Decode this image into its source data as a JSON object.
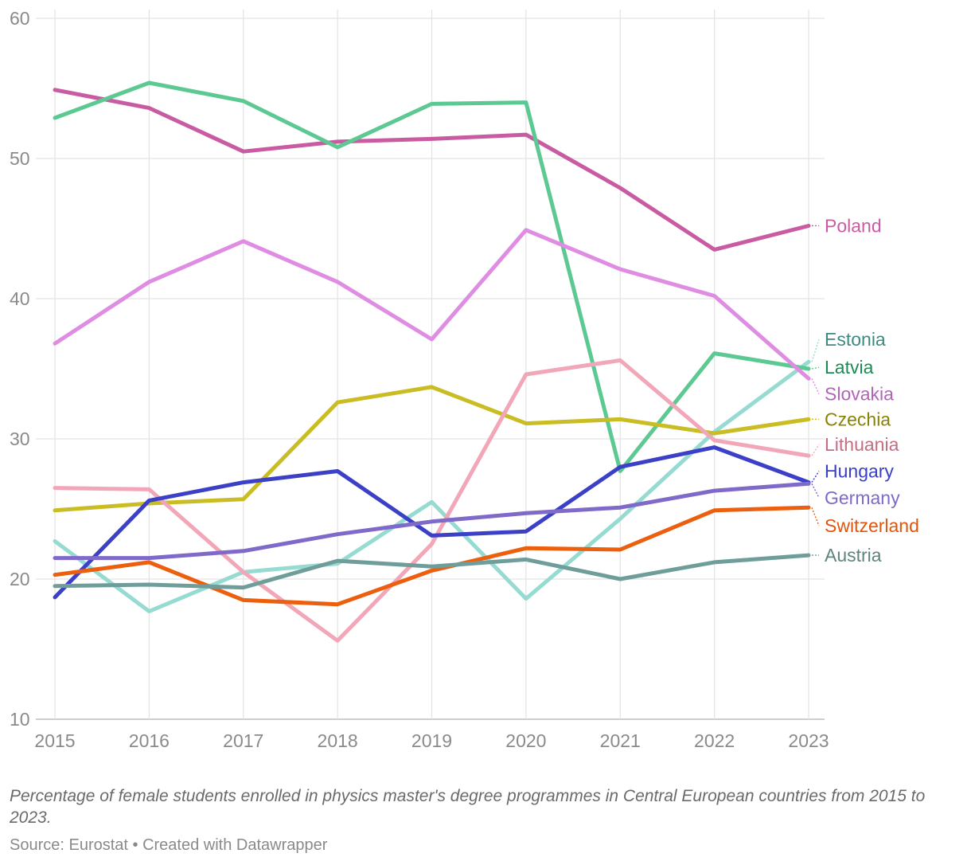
{
  "chart_data": {
    "type": "line",
    "x": [
      2015,
      2016,
      2017,
      2018,
      2019,
      2020,
      2021,
      2022,
      2023
    ],
    "ylim": [
      10,
      60
    ],
    "yticks": [
      10,
      20,
      30,
      40,
      50,
      60
    ],
    "ytick_labels": [
      "10",
      "20",
      "30",
      "40",
      "50",
      "60"
    ],
    "xtick_labels": [
      "2015",
      "2016",
      "2017",
      "2018",
      "2019",
      "2020",
      "2021",
      "2022",
      "2023"
    ],
    "grid": true,
    "legend": "direct labels at right end of lines",
    "series": [
      {
        "name": "Poland",
        "color": "#c95ba3",
        "values": [
          54.9,
          53.6,
          50.5,
          51.2,
          51.4,
          51.7,
          47.9,
          43.5,
          45.2
        ]
      },
      {
        "name": "Estonia",
        "color": "#96dbd2",
        "values": [
          22.7,
          17.7,
          20.5,
          21.1,
          25.5,
          18.6,
          24.3,
          30.5,
          35.5
        ]
      },
      {
        "name": "Latvia",
        "color": "#5dc992",
        "values": [
          52.9,
          55.4,
          54.1,
          50.8,
          53.9,
          54.0,
          27.7,
          36.1,
          35.0
        ]
      },
      {
        "name": "Slovakia",
        "color": "#de8de3",
        "values": [
          36.8,
          41.2,
          44.1,
          41.2,
          37.1,
          44.9,
          42.1,
          40.2,
          34.3
        ]
      },
      {
        "name": "Czechia",
        "color": "#c9bd23",
        "values": [
          24.9,
          25.4,
          25.7,
          32.6,
          33.7,
          31.1,
          31.4,
          30.4,
          31.4
        ]
      },
      {
        "name": "Lithuania",
        "color": "#f1a7b8",
        "values": [
          26.5,
          26.4,
          20.5,
          15.6,
          22.5,
          34.6,
          35.6,
          29.9,
          28.8
        ]
      },
      {
        "name": "Hungary",
        "color": "#3b40c7",
        "values": [
          18.7,
          25.6,
          26.9,
          27.7,
          23.1,
          23.4,
          28.0,
          29.4,
          26.9
        ]
      },
      {
        "name": "Germany",
        "color": "#7f69c9",
        "values": [
          21.5,
          21.5,
          22.0,
          23.2,
          24.1,
          24.7,
          25.1,
          26.3,
          26.8
        ]
      },
      {
        "name": "Switzerland",
        "color": "#ec5f0e",
        "values": [
          20.3,
          21.2,
          18.5,
          18.2,
          20.6,
          22.2,
          22.1,
          24.9,
          25.1
        ]
      },
      {
        "name": "Austria",
        "color": "#6f9e9a",
        "values": [
          19.5,
          19.6,
          19.4,
          21.3,
          20.9,
          21.4,
          20.0,
          21.2,
          21.7
        ]
      }
    ],
    "labels": [
      {
        "name": "Poland",
        "text": "Poland",
        "color": "#c95ba3",
        "label_value": 45.2
      },
      {
        "name": "Estonia",
        "text": "Estonia",
        "color": "#3d8a80",
        "label_value": 37.1
      },
      {
        "name": "Latvia",
        "text": "Latvia",
        "color": "#1c8a55",
        "label_value": 35.1
      },
      {
        "name": "Slovakia",
        "text": "Slovakia",
        "color": "#b164b8",
        "label_value": 33.2
      },
      {
        "name": "Czechia",
        "text": "Czechia",
        "color": "#8a8200",
        "label_value": 31.4
      },
      {
        "name": "Lithuania",
        "text": "Lithuania",
        "color": "#c46e82",
        "label_value": 29.6
      },
      {
        "name": "Hungary",
        "text": "Hungary",
        "color": "#3b40c7",
        "label_value": 27.7
      },
      {
        "name": "Germany",
        "text": "Germany",
        "color": "#7f69c9",
        "label_value": 25.8
      },
      {
        "name": "Switzerland",
        "text": "Switzerland",
        "color": "#e0560c",
        "label_value": 23.8
      },
      {
        "name": "Austria",
        "text": "Austria",
        "color": "#5f8480",
        "label_value": 21.7
      }
    ]
  },
  "caption": "Percentage of female students enrolled in physics master's degree programmes in Central European countries from 2015 to 2023.",
  "source": "Source: Eurostat • Created with Datawrapper"
}
